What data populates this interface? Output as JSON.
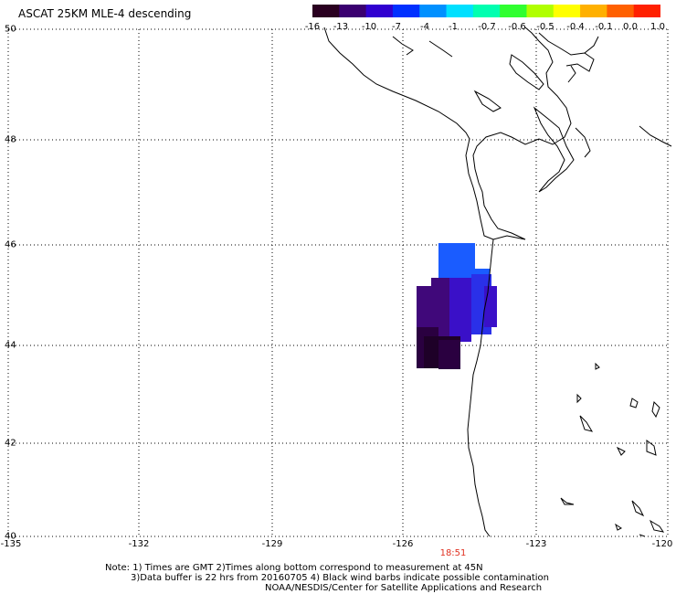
{
  "title": "ASCAT 25KM MLE-4 descending",
  "colorbar": {
    "colors": [
      "#2a0020",
      "#3a0070",
      "#3000d0",
      "#0030ff",
      "#0090ff",
      "#00e0ff",
      "#00ffb0",
      "#30ff30",
      "#b0ff00",
      "#ffff00",
      "#ffb000",
      "#ff6000",
      "#ff2000"
    ],
    "labels": [
      "-16",
      "-13",
      "-10",
      "-7",
      "-4",
      "-1",
      "-0.7",
      "-0.6",
      "-0.5",
      "-0.4",
      "-0.1",
      "0.0",
      "1.0"
    ]
  },
  "axes": {
    "lat_labels": [
      "50",
      "48",
      "46",
      "44",
      "42",
      "40"
    ],
    "lon_labels": [
      "-135",
      "-132",
      "-129",
      "-126",
      "-123",
      "-120"
    ]
  },
  "time_label": "18:51",
  "notes": {
    "line1": "Note: 1) Times are GMT 2)Times along bottom correspond to measurement at 45N",
    "line2": "3)Data buffer is 22 hrs from 20160705 4) Black wind barbs indicate possible contamination",
    "line3": "NOAA/NESDIS/Center for Satellite Applications and Research"
  },
  "swath_colors": {
    "blue": "#1a5cff",
    "mid_blue": "#2a30e8",
    "indigo": "#3a10c8",
    "purple": "#40087a",
    "dark_purple": "#2a0040",
    "darkest": "#1e0028"
  }
}
